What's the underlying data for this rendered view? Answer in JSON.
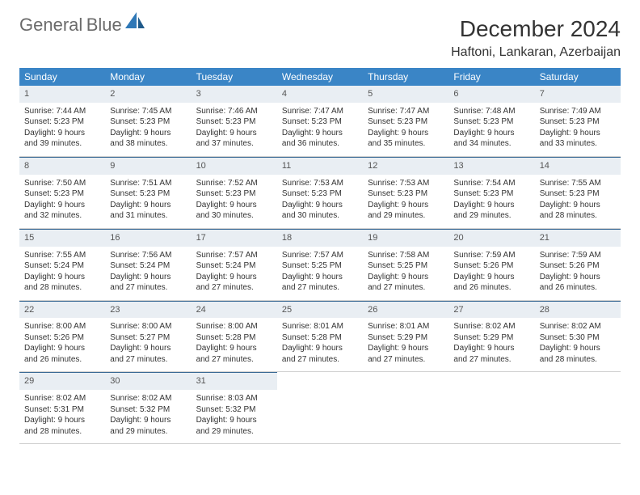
{
  "logo": {
    "word1": "General",
    "word2": "Blue"
  },
  "title": "December 2024",
  "location": "Haftoni, Lankaran, Azerbaijan",
  "colors": {
    "header_bg": "#3a85c6",
    "header_text": "#ffffff",
    "daynum_bg": "#e9eef3",
    "daynum_border": "#3a6a95",
    "cell_border": "#d0d0d0",
    "body_text": "#333333",
    "logo_gray": "#6b6b6b",
    "logo_blue": "#2f78b7"
  },
  "weekdays": [
    "Sunday",
    "Monday",
    "Tuesday",
    "Wednesday",
    "Thursday",
    "Friday",
    "Saturday"
  ],
  "weeks": [
    [
      {
        "n": "1",
        "sunrise": "7:44 AM",
        "sunset": "5:23 PM",
        "d1": "Daylight: 9 hours",
        "d2": "and 39 minutes."
      },
      {
        "n": "2",
        "sunrise": "7:45 AM",
        "sunset": "5:23 PM",
        "d1": "Daylight: 9 hours",
        "d2": "and 38 minutes."
      },
      {
        "n": "3",
        "sunrise": "7:46 AM",
        "sunset": "5:23 PM",
        "d1": "Daylight: 9 hours",
        "d2": "and 37 minutes."
      },
      {
        "n": "4",
        "sunrise": "7:47 AM",
        "sunset": "5:23 PM",
        "d1": "Daylight: 9 hours",
        "d2": "and 36 minutes."
      },
      {
        "n": "5",
        "sunrise": "7:47 AM",
        "sunset": "5:23 PM",
        "d1": "Daylight: 9 hours",
        "d2": "and 35 minutes."
      },
      {
        "n": "6",
        "sunrise": "7:48 AM",
        "sunset": "5:23 PM",
        "d1": "Daylight: 9 hours",
        "d2": "and 34 minutes."
      },
      {
        "n": "7",
        "sunrise": "7:49 AM",
        "sunset": "5:23 PM",
        "d1": "Daylight: 9 hours",
        "d2": "and 33 minutes."
      }
    ],
    [
      {
        "n": "8",
        "sunrise": "7:50 AM",
        "sunset": "5:23 PM",
        "d1": "Daylight: 9 hours",
        "d2": "and 32 minutes."
      },
      {
        "n": "9",
        "sunrise": "7:51 AM",
        "sunset": "5:23 PM",
        "d1": "Daylight: 9 hours",
        "d2": "and 31 minutes."
      },
      {
        "n": "10",
        "sunrise": "7:52 AM",
        "sunset": "5:23 PM",
        "d1": "Daylight: 9 hours",
        "d2": "and 30 minutes."
      },
      {
        "n": "11",
        "sunrise": "7:53 AM",
        "sunset": "5:23 PM",
        "d1": "Daylight: 9 hours",
        "d2": "and 30 minutes."
      },
      {
        "n": "12",
        "sunrise": "7:53 AM",
        "sunset": "5:23 PM",
        "d1": "Daylight: 9 hours",
        "d2": "and 29 minutes."
      },
      {
        "n": "13",
        "sunrise": "7:54 AM",
        "sunset": "5:23 PM",
        "d1": "Daylight: 9 hours",
        "d2": "and 29 minutes."
      },
      {
        "n": "14",
        "sunrise": "7:55 AM",
        "sunset": "5:23 PM",
        "d1": "Daylight: 9 hours",
        "d2": "and 28 minutes."
      }
    ],
    [
      {
        "n": "15",
        "sunrise": "7:55 AM",
        "sunset": "5:24 PM",
        "d1": "Daylight: 9 hours",
        "d2": "and 28 minutes."
      },
      {
        "n": "16",
        "sunrise": "7:56 AM",
        "sunset": "5:24 PM",
        "d1": "Daylight: 9 hours",
        "d2": "and 27 minutes."
      },
      {
        "n": "17",
        "sunrise": "7:57 AM",
        "sunset": "5:24 PM",
        "d1": "Daylight: 9 hours",
        "d2": "and 27 minutes."
      },
      {
        "n": "18",
        "sunrise": "7:57 AM",
        "sunset": "5:25 PM",
        "d1": "Daylight: 9 hours",
        "d2": "and 27 minutes."
      },
      {
        "n": "19",
        "sunrise": "7:58 AM",
        "sunset": "5:25 PM",
        "d1": "Daylight: 9 hours",
        "d2": "and 27 minutes."
      },
      {
        "n": "20",
        "sunrise": "7:59 AM",
        "sunset": "5:26 PM",
        "d1": "Daylight: 9 hours",
        "d2": "and 26 minutes."
      },
      {
        "n": "21",
        "sunrise": "7:59 AM",
        "sunset": "5:26 PM",
        "d1": "Daylight: 9 hours",
        "d2": "and 26 minutes."
      }
    ],
    [
      {
        "n": "22",
        "sunrise": "8:00 AM",
        "sunset": "5:26 PM",
        "d1": "Daylight: 9 hours",
        "d2": "and 26 minutes."
      },
      {
        "n": "23",
        "sunrise": "8:00 AM",
        "sunset": "5:27 PM",
        "d1": "Daylight: 9 hours",
        "d2": "and 27 minutes."
      },
      {
        "n": "24",
        "sunrise": "8:00 AM",
        "sunset": "5:28 PM",
        "d1": "Daylight: 9 hours",
        "d2": "and 27 minutes."
      },
      {
        "n": "25",
        "sunrise": "8:01 AM",
        "sunset": "5:28 PM",
        "d1": "Daylight: 9 hours",
        "d2": "and 27 minutes."
      },
      {
        "n": "26",
        "sunrise": "8:01 AM",
        "sunset": "5:29 PM",
        "d1": "Daylight: 9 hours",
        "d2": "and 27 minutes."
      },
      {
        "n": "27",
        "sunrise": "8:02 AM",
        "sunset": "5:29 PM",
        "d1": "Daylight: 9 hours",
        "d2": "and 27 minutes."
      },
      {
        "n": "28",
        "sunrise": "8:02 AM",
        "sunset": "5:30 PM",
        "d1": "Daylight: 9 hours",
        "d2": "and 28 minutes."
      }
    ],
    [
      {
        "n": "29",
        "sunrise": "8:02 AM",
        "sunset": "5:31 PM",
        "d1": "Daylight: 9 hours",
        "d2": "and 28 minutes."
      },
      {
        "n": "30",
        "sunrise": "8:02 AM",
        "sunset": "5:32 PM",
        "d1": "Daylight: 9 hours",
        "d2": "and 29 minutes."
      },
      {
        "n": "31",
        "sunrise": "8:03 AM",
        "sunset": "5:32 PM",
        "d1": "Daylight: 9 hours",
        "d2": "and 29 minutes."
      },
      null,
      null,
      null,
      null
    ]
  ]
}
